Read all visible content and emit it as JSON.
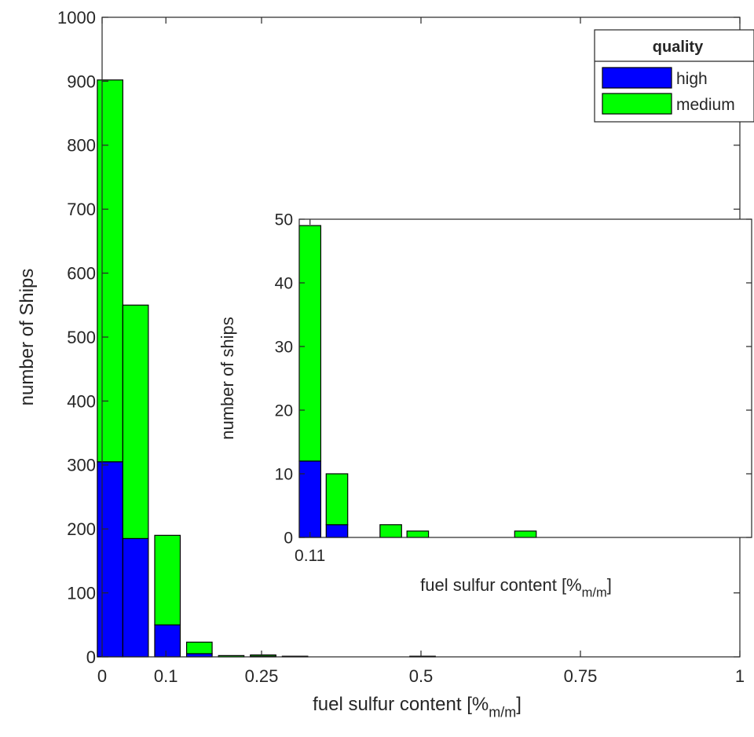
{
  "colors": {
    "high": "#0000ff",
    "medium": "#00ff00",
    "axis": "#262626",
    "bar_edge": "#000000"
  },
  "legend": {
    "title": "quality",
    "entries": [
      "high",
      "medium"
    ],
    "placement": "top-right"
  },
  "chart_data": [
    {
      "type": "bar",
      "stacked": true,
      "title": "",
      "xlabel": "fuel sulfur content [%",
      "xlabel_subscript": "m/m",
      "xlabel_suffix": "]",
      "ylabel": "number of Ships",
      "xlim": [
        0,
        1
      ],
      "ylim": [
        0,
        1000
      ],
      "xticks": [
        0,
        0.1,
        0.25,
        0.5,
        0.75,
        1
      ],
      "xtick_labels": [
        "0",
        "0.1",
        "0.25",
        "0.5",
        "0.75",
        "1"
      ],
      "yticks": [
        0,
        100,
        200,
        300,
        400,
        500,
        600,
        700,
        800,
        900,
        1000
      ],
      "ytick_labels": [
        "0",
        "100",
        "200",
        "300",
        "400",
        "500",
        "600",
        "700",
        "800",
        "900",
        "1000"
      ],
      "bin_width": 0.05,
      "bar_width": 0.04,
      "x": [
        0.0125,
        0.0525,
        0.1025,
        0.1525,
        0.2025,
        0.2525,
        0.3025,
        0.5025
      ],
      "series": [
        {
          "name": "high",
          "values": [
            305,
            185,
            50,
            5,
            0,
            1,
            0,
            0
          ]
        },
        {
          "name": "medium",
          "values": [
            597,
            365,
            140,
            18,
            2,
            2,
            1,
            1
          ]
        }
      ],
      "grid": false
    },
    {
      "type": "bar",
      "stacked": true,
      "inset": true,
      "title": "",
      "xlabel": "fuel sulfur content [%",
      "xlabel_subscript": "m/m",
      "xlabel_suffix": "]",
      "ylabel": "number of ships",
      "xlim": [
        0.1,
        0.52
      ],
      "ylim": [
        0,
        50
      ],
      "xticks": [
        0.11
      ],
      "xtick_labels": [
        "0.11"
      ],
      "yticks": [
        0,
        10,
        20,
        30,
        40,
        50
      ],
      "ytick_labels": [
        "0",
        "10",
        "20",
        "30",
        "40",
        "50"
      ],
      "bar_width": 0.02,
      "x": [
        0.11,
        0.135,
        0.185,
        0.21,
        0.31
      ],
      "series": [
        {
          "name": "high",
          "values": [
            12,
            2,
            0,
            0,
            0
          ]
        },
        {
          "name": "medium",
          "values": [
            37,
            8,
            2,
            1,
            1
          ]
        }
      ],
      "grid": false
    }
  ]
}
